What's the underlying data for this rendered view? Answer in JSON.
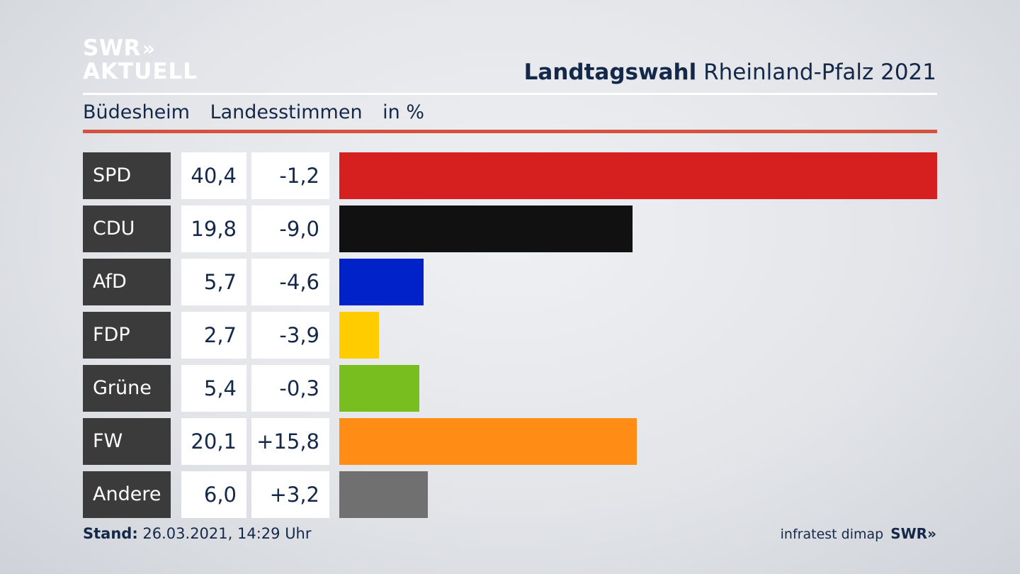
{
  "logo": {
    "line1": "SWR",
    "line1_chevrons": "»",
    "line2": "AKTUELL"
  },
  "header": {
    "title_bold": "Landtagswahl",
    "title_rest": "Rheinland-Pfalz 2021"
  },
  "subheader": {
    "place": "Büdesheim",
    "vote_type": "Landesstimmen",
    "unit": "in %"
  },
  "chart_data": {
    "type": "bar",
    "orientation": "horizontal",
    "title": "Landtagswahl Rheinland-Pfalz 2021",
    "subtitle": "Büdesheim Landesstimmen in %",
    "categories": [
      "SPD",
      "CDU",
      "AfD",
      "FDP",
      "Grüne",
      "FW",
      "Andere"
    ],
    "values": [
      40.4,
      19.8,
      5.7,
      2.7,
      5.4,
      20.1,
      6.0
    ],
    "value_labels": [
      "40,4",
      "19,8",
      "5,7",
      "2,7",
      "5,4",
      "20,1",
      "6,0"
    ],
    "diff_labels": [
      "-1,2",
      "-9,0",
      "-4,6",
      "-3,9",
      "-0,3",
      "+15,8",
      "+3,2"
    ],
    "diffs": [
      -1.2,
      -9.0,
      -4.6,
      -3.9,
      -0.3,
      15.8,
      3.2
    ],
    "colors": [
      "#d61f1f",
      "#111111",
      "#0022c8",
      "#ffcc00",
      "#78be1e",
      "#ff8c14",
      "#707070"
    ],
    "xlim": [
      0,
      40.4
    ],
    "grid": false
  },
  "footer": {
    "stand_label": "Stand:",
    "stand_value": "26.03.2021, 14:29 Uhr",
    "source": "infratest dimap",
    "brand": "SWR",
    "brand_chevrons": "»"
  }
}
